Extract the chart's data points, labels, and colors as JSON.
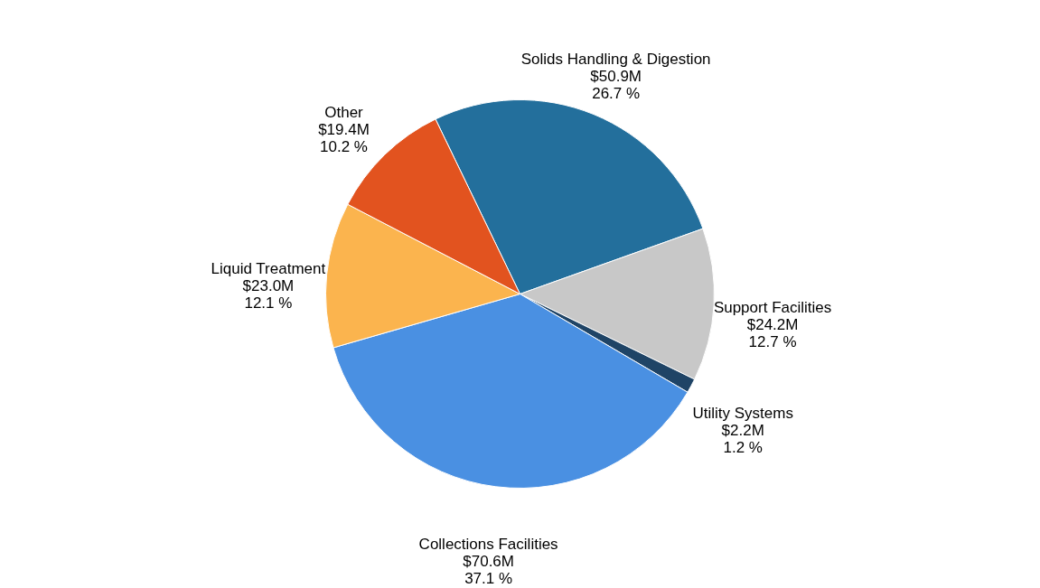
{
  "chart_data": {
    "type": "pie",
    "categories": [
      "Solids Handling & Digestion",
      "Support Facilities",
      "Utility Systems",
      "Collections Facilities",
      "Liquid Treatment",
      "Other"
    ],
    "values": [
      26.7,
      12.7,
      1.2,
      37.1,
      12.1,
      10.2
    ],
    "colors": [
      "#236f9c",
      "#c8c8c8",
      "#1f4466",
      "#4a90e2",
      "#fbb44e",
      "#e2531f"
    ],
    "value_labels": [
      "$50.9M\n26.7 %",
      "$24.2M\n12.7 %",
      "$2.2M\n1.2 %",
      "$70.6M\n37.1 %",
      "$23.0M\n12.1 %",
      "$19.4M\n10.2 %"
    ],
    "legend": false
  }
}
